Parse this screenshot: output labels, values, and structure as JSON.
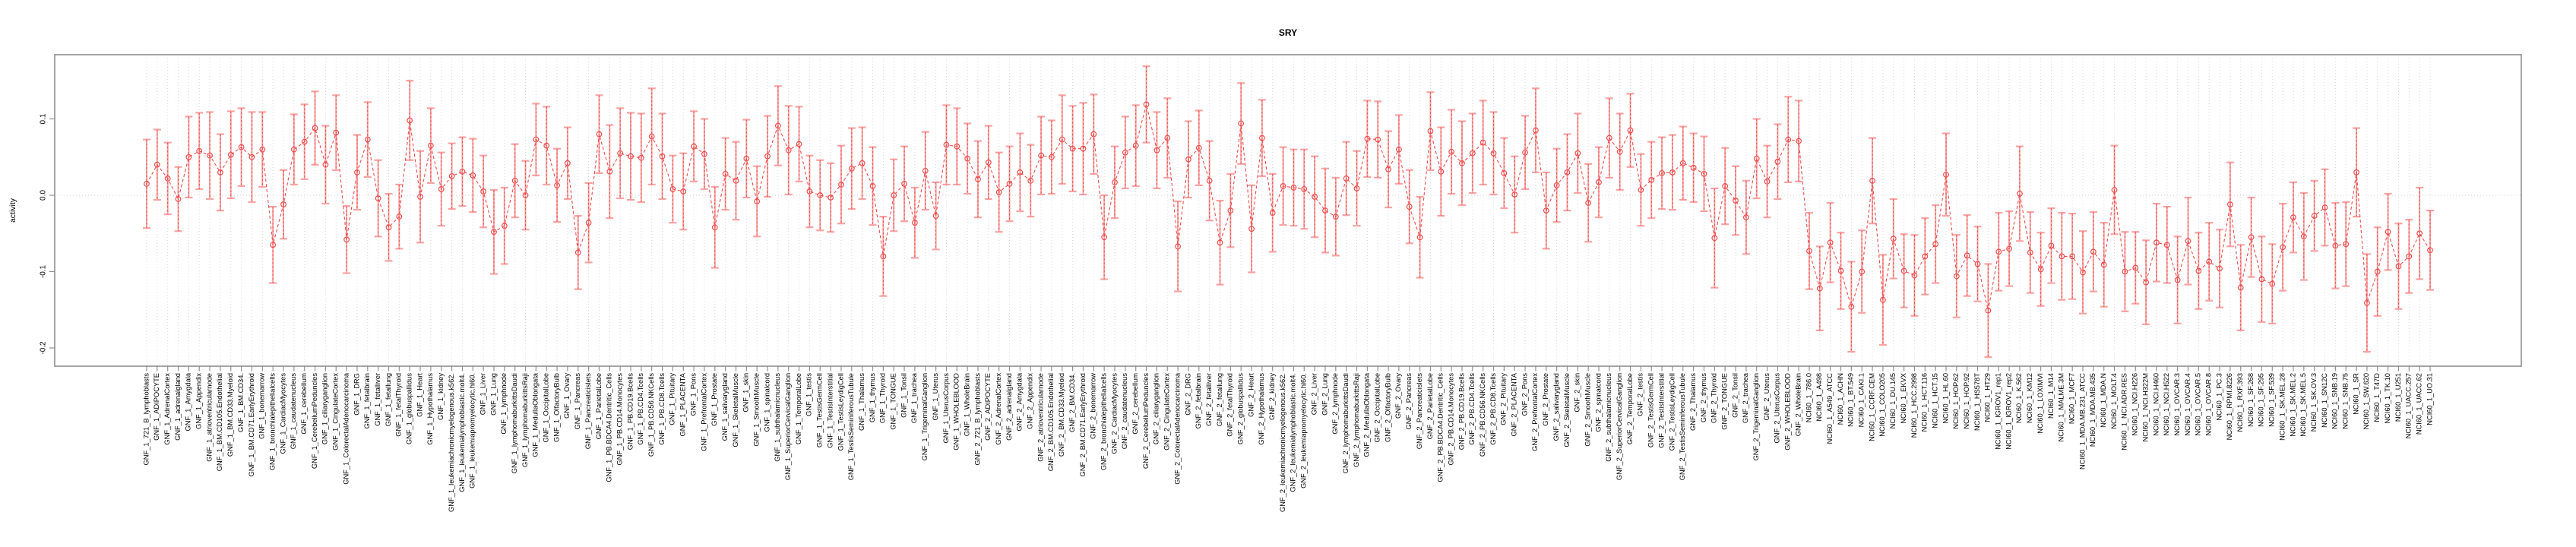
{
  "header": {
    "title": "SRY"
  },
  "colors": {
    "series_line": "#ee4e4e",
    "marker_stroke": "#ee4e4e",
    "error_bar": "#f9a3a3",
    "error_bar_dash_overlay": "#ee4e4e",
    "grid": "#d9d9d9",
    "zero_line": "#cfcfcf",
    "axis": "#8f8f8f",
    "text": "#000000",
    "background": "#ffffff"
  },
  "chart_data": {
    "type": "scatter",
    "title": "SRY",
    "xlabel": "",
    "ylabel": "activity",
    "ylim": [
      -0.225,
      0.184
    ],
    "yticks": [
      0.1,
      0.0,
      -0.1,
      -0.2
    ],
    "ytick_labels": [
      "0.1",
      "0.0",
      "-0.1",
      "-0.2"
    ],
    "grid": {
      "vertical_dotted_per_category": true,
      "horizontal_dotted_at_zero": true
    },
    "legend_position": "none",
    "series_name": "activity",
    "marker": "open-circle",
    "line_style": "dashed",
    "error_bars": true,
    "categories": [
      "GNF_1_721_B_lymphoblasts",
      "GNF_1_ADIPOCYTE",
      "GNF_1_AdrenalCortex",
      "GNF_1_adrenalgland",
      "GNF_1_Amygdala",
      "GNF_1_Appendix",
      "GNF_1_atrioventricularnode",
      "GNF_1_BM.CD105.Endothelial",
      "GNF_1_BM.CD33.Myeloid",
      "GNF_1_BM.CD34.",
      "GNF_1_BM.CD71.EarlyErythroid",
      "GNF_1_bonemarrow",
      "GNF_1_bronchialepithelialcells",
      "GNF_1_CardiacMyocytes",
      "GNF_1_caudatenucleus",
      "GNF_1_cerebellum",
      "GNF_1_CerebellumPeduncles",
      "GNF_1_ciliaryganglion",
      "GNF_1_CingulateCortex",
      "GNF_1_ColorectalAdenocarcinoma",
      "GNF_1_DRG",
      "GNF_1_fetalbrain",
      "GNF_1_fetalliver",
      "GNF_1_fetallung",
      "GNF_1_fetalThyroid",
      "GNF_1_globuspallidus",
      "GNF_1_Heart",
      "GNF_1_Hypothalamus",
      "GNF_1_kidney",
      "GNF_1_leukemiachronicmyelogenous.k562.",
      "GNF_1_leukemialymphoblastic.molt4.",
      "GNF_1_leukemiapromyelocytic.hl60.",
      "GNF_1_Liver",
      "GNF_1_Lung",
      "GNF_1_lymphnode",
      "GNF_1_lymphomaburkittsDaudi",
      "GNF_1_lymphomaburkittsRaji",
      "GNF_1_MedullaOblongata",
      "GNF_1_OccipitalLobe",
      "GNF_1_OlfactoryBulb",
      "GNF_1_Ovary",
      "GNF_1_Pancreas",
      "GNF_1_Pancreaticislets",
      "GNF_1_ParietalLobe",
      "GNF_1_PB.BDCA4.Dentritic_Cells",
      "GNF_1_PB.CD14.Monocytes",
      "GNF_1_PB.CD19.Bcells",
      "GNF_1_PB.CD4.Tcells",
      "GNF_1_PB.CD56.NKCells",
      "GNF_1_PB.CD8.Tcells",
      "GNF_1_Pituitary",
      "GNF_1_PLACENTA",
      "GNF_1_Pons",
      "GNF_1_PrefrontalCortex",
      "GNF_1_Prostate",
      "GNF_1_salivarygland",
      "GNF_1_SkeletalMuscle",
      "GNF_1_skin",
      "GNF_1_SmoothMuscle",
      "GNF_1_spinalcord",
      "GNF_1_subthalamicnucleus",
      "GNF_1_SuperiorCervicalGanglion",
      "GNF_1_TemporalLobe",
      "GNF_1_testis",
      "GNF_1_TestisGermCell",
      "GNF_1_TestisInterstitial",
      "GNF_1_TestisLeydigCell",
      "GNF_1_TestisSeminiferousTubule",
      "GNF_1_Thalamus",
      "GNF_1_thymus",
      "GNF_1_Thyroid",
      "GNF_1_TONGUE",
      "GNF_1_Tonsil",
      "GNF_1_trachea",
      "GNF_1_TrigeminalGanglion",
      "GNF_1_Uterus",
      "GNF_1_UterusCorpus",
      "GNF_1_WHOLEBLOOD",
      "GNF_1_WholeBrain",
      "GNF_2_721_B_lymphoblasts",
      "GNF_2_ADIPOCYTE",
      "GNF_2_AdrenalCortex",
      "GNF_2_adrenalgland",
      "GNF_2_Amygdala",
      "GNF_2_Appendix",
      "GNF_2_atrioventricularnode",
      "GNF_2_BM.CD105.Endothelial",
      "GNF_2_BM.CD33.Myeloid",
      "GNF_2_BM.CD34.",
      "GNF_2_BM.CD71.EarlyErythroid",
      "GNF_2_bonemarrow",
      "GNF_2_bronchialepithelialcells",
      "GNF_2_CardiacMyocytes",
      "GNF_2_caudatenucleus",
      "GNF_2_cerebellum",
      "GNF_2_CerebellumPeduncles",
      "GNF_2_ciliaryganglion",
      "GNF_2_CingulateCortex",
      "GNF_2_ColorectalAdenocarcinoma",
      "GNF_2_DRG",
      "GNF_2_fetalbrain",
      "GNF_2_fetalliver",
      "GNF_2_fetallung",
      "GNF_2_fetalThyroid",
      "GNF_2_globuspallidus",
      "GNF_2_Heart",
      "GNF_2_Hypothalamus",
      "GNF_2_kidney",
      "GNF_2_leukemiachronicmyelogenous.k562.",
      "GNF_2_leukemialymphoblastic.molt4.",
      "GNF_2_leukemiapromyelocytic.hl60.",
      "GNF_2_Liver",
      "GNF_2_Lung",
      "GNF_2_lymphnode",
      "GNF_2_lymphomaburkittsDaudi",
      "GNF_2_lymphomaburkittsRaji",
      "GNF_2_MedullaOblongata",
      "GNF_2_OccipitalLobe",
      "GNF_2_OlfactoryBulb",
      "GNF_2_Ovary",
      "GNF_2_Pancreas",
      "GNF_2_Pancreaticislets",
      "GNF_2_ParietalLobe",
      "GNF_2_PB.BDCA4.Dentritic_Cells",
      "GNF_2_PB.CD14.Monocytes",
      "GNF_2_PB.CD19.Bcells",
      "GNF_2_PB.CD4.Tcells",
      "GNF_2_PB.CD56.NKCells",
      "GNF_2_PB.CD8.Tcells",
      "GNF_2_Pituitary",
      "GNF_2_PLACENTA",
      "GNF_2_Pons",
      "GNF_2_PrefrontalCortex",
      "GNF_2_Prostate",
      "GNF_2_salivarygland",
      "GNF_2_SkeletalMuscle",
      "GNF_2_skin",
      "GNF_2_SmoothMuscle",
      "GNF_2_spinalcord",
      "GNF_2_subthalamicnucleus",
      "GNF_2_SuperiorCervicalGanglion",
      "GNF_2_TemporalLobe",
      "GNF_2_testis",
      "GNF_2_TestisGermCell",
      "GNF_2_TestisInterstitial",
      "GNF_2_TestisLeydigCell",
      "GNF_2_TestisSeminiferousTubule",
      "GNF_2_Thalamus",
      "GNF_2_thymus",
      "GNF_2_Thyroid",
      "GNF_2_TONGUE",
      "GNF_2_Tonsil",
      "GNF_2_trachea",
      "GNF_2_TrigeminalGanglion",
      "GNF_2_Uterus",
      "GNF_2_UterusCorpus",
      "GNF_2_WHOLEBLOOD",
      "GNF_2_WholeBrain",
      "NCI60_1_786.0",
      "NCI60_1_A498",
      "NCI60_1_A549_ATCC",
      "NCI60_1_ACHN",
      "NCI60_1_BT.549",
      "NCI60_1_CAKI.1",
      "NCI60_1_CCRF.CEM",
      "NCI60_1_COLO205",
      "NCI60_1_DU.145",
      "NCI60_1_EKVX",
      "NCI60_1_HCC.2998",
      "NCI60_1_HCT.116",
      "NCI60_1_HCT.15",
      "NCI60_1_HL.60",
      "NCI60_1_HOP.62",
      "NCI60_1_HOP.92",
      "NCI60_1_HS578T",
      "NCI60_1_HT29",
      "NCI60_1_IGROV1_rep1",
      "NCI60_1_IGROV1_rep2",
      "NCI60_1_K.562",
      "NCI60_1_KM12",
      "NCI60_1_LOXIMVI",
      "NCI60_1_M14",
      "NCI60_1_MALME.3M",
      "NCI60_1_MCF7",
      "NCI60_1_MDA.MB.231_ATCC",
      "NCI60_1_MDA.MB.435",
      "NCI60_1_MDA.N",
      "NCI60_1_MOLT.4",
      "NCI60_1_NCI.ADR.RES",
      "NCI60_1_NCI.H226",
      "NCI60_1_NCI.H322M",
      "NCI60_1_NCI.H460",
      "NCI60_1_NCI.H522",
      "NCI60_1_OVCAR.3",
      "NCI60_1_OVCAR.4",
      "NCI60_1_OVCAR.5",
      "NCI60_1_OVCAR.8",
      "NCI60_1_PC.3",
      "NCI60_1_RPMI.8226",
      "NCI60_1_RXF.393",
      "NCI60_1_SF.268",
      "NCI60_1_SF.295",
      "NCI60_1_SF.539",
      "NCI60_1_SK.MEL.28",
      "NCI60_1_SK.MEL.2",
      "NCI60_1_SK.MEL.5",
      "NCI60_1_SK.OV.3",
      "NCI60_1_SN12C",
      "NCI60_1_SNB.19",
      "NCI60_1_SNB.75",
      "NCI60_1_SR",
      "NCI60_1_SW.620",
      "NCI60_1_T47D",
      "NCI60_1_TK.10",
      "NCI60_1_U251",
      "NCI60_1_UACC.257",
      "NCI60_1_UACC.62",
      "NCI60_1_UO.31"
    ],
    "values": [
      0.015,
      0.04,
      0.022,
      -0.005,
      0.05,
      0.058,
      0.052,
      0.03,
      0.053,
      0.063,
      0.05,
      0.06,
      -0.065,
      -0.012,
      0.06,
      0.07,
      0.088,
      0.04,
      0.082,
      -0.058,
      0.03,
      0.073,
      -0.004,
      -0.042,
      -0.028,
      0.098,
      -0.002,
      0.065,
      0.008,
      0.025,
      0.031,
      0.026,
      0.005,
      -0.048,
      -0.04,
      0.019,
      0.0,
      0.073,
      0.065,
      0.013,
      0.042,
      -0.075,
      -0.036,
      0.08,
      0.031,
      0.055,
      0.051,
      0.049,
      0.077,
      0.051,
      0.008,
      0.005,
      0.064,
      0.054,
      -0.042,
      0.028,
      0.019,
      0.048,
      -0.008,
      0.051,
      0.091,
      0.059,
      0.067,
      0.005,
      0.0,
      -0.003,
      0.014,
      0.035,
      0.042,
      0.012,
      -0.08,
      0.0,
      0.015,
      -0.036,
      0.032,
      -0.027,
      0.066,
      0.064,
      0.048,
      0.021,
      0.043,
      0.004,
      0.015,
      0.03,
      0.019,
      0.052,
      0.05,
      0.073,
      0.061,
      0.061,
      0.08,
      -0.055,
      0.017,
      0.056,
      0.065,
      0.119,
      0.059,
      0.075,
      -0.067,
      0.047,
      0.062,
      0.019,
      -0.062,
      -0.02,
      0.094,
      -0.044,
      0.075,
      -0.023,
      0.012,
      0.01,
      0.008,
      -0.002,
      -0.02,
      -0.028,
      0.022,
      0.009,
      0.074,
      0.073,
      0.034,
      0.06,
      -0.015,
      -0.055,
      0.084,
      0.031,
      0.057,
      0.042,
      0.055,
      0.069,
      0.055,
      0.029,
      0.001,
      0.056,
      0.085,
      -0.02,
      0.013,
      0.03,
      0.055,
      -0.01,
      0.017,
      0.075,
      0.057,
      0.085,
      0.007,
      0.02,
      0.029,
      0.03,
      0.042,
      0.036,
      0.028,
      -0.056,
      0.012,
      -0.007,
      -0.029,
      0.048,
      0.018,
      0.044,
      0.073,
      0.071,
      -0.073,
      -0.122,
      -0.062,
      -0.099,
      -0.146,
      -0.1,
      0.019,
      -0.137,
      -0.057,
      -0.099,
      -0.105,
      -0.08,
      -0.064,
      0.027,
      -0.106,
      -0.079,
      -0.09,
      -0.151,
      -0.074,
      -0.07,
      0.002,
      -0.075,
      -0.097,
      -0.066,
      -0.08,
      -0.08,
      -0.101,
      -0.074,
      -0.091,
      0.007,
      -0.1,
      -0.095,
      -0.114,
      -0.062,
      -0.065,
      -0.111,
      -0.06,
      -0.099,
      -0.087,
      -0.096,
      -0.012,
      -0.121,
      -0.055,
      -0.11,
      -0.116,
      -0.068,
      -0.029,
      -0.054,
      -0.027,
      -0.016,
      -0.066,
      -0.064,
      0.03,
      -0.141,
      -0.1,
      -0.048,
      -0.093,
      -0.08,
      -0.05,
      -0.072
    ],
    "errors": [
      0.058,
      0.046,
      0.047,
      0.042,
      0.053,
      0.05,
      0.057,
      0.05,
      0.057,
      0.051,
      0.059,
      0.049,
      0.05,
      0.045,
      0.046,
      0.049,
      0.048,
      0.051,
      0.049,
      0.044,
      0.049,
      0.049,
      0.05,
      0.044,
      0.042,
      0.052,
      0.06,
      0.049,
      0.048,
      0.043,
      0.045,
      0.048,
      0.047,
      0.055,
      0.05,
      0.048,
      0.045,
      0.047,
      0.051,
      0.048,
      0.047,
      0.048,
      0.052,
      0.051,
      0.061,
      0.059,
      0.057,
      0.058,
      0.063,
      0.056,
      0.044,
      0.05,
      0.046,
      0.046,
      0.053,
      0.047,
      0.051,
      0.051,
      0.046,
      0.053,
      0.052,
      0.058,
      0.049,
      0.047,
      0.046,
      0.045,
      0.051,
      0.053,
      0.047,
      0.051,
      0.052,
      0.047,
      0.049,
      0.046,
      0.051,
      0.044,
      0.052,
      0.05,
      0.046,
      0.05,
      0.048,
      0.052,
      0.049,
      0.051,
      0.047,
      0.051,
      0.048,
      0.058,
      0.056,
      0.06,
      0.052,
      0.055,
      0.047,
      0.047,
      0.053,
      0.05,
      0.05,
      0.052,
      0.059,
      0.05,
      0.049,
      0.052,
      0.055,
      0.048,
      0.053,
      0.057,
      0.05,
      0.051,
      0.051,
      0.05,
      0.052,
      0.053,
      0.055,
      0.051,
      0.048,
      0.049,
      0.05,
      0.05,
      0.05,
      0.045,
      0.048,
      0.053,
      0.051,
      0.058,
      0.055,
      0.055,
      0.052,
      0.055,
      0.054,
      0.046,
      0.05,
      0.048,
      0.055,
      0.05,
      0.048,
      0.05,
      0.052,
      0.051,
      0.046,
      0.052,
      0.05,
      0.048,
      0.047,
      0.05,
      0.047,
      0.049,
      0.048,
      0.045,
      0.049,
      0.065,
      0.05,
      0.045,
      0.048,
      0.052,
      0.047,
      0.049,
      0.056,
      0.053,
      0.05,
      0.055,
      0.052,
      0.05,
      0.059,
      0.054,
      0.056,
      0.059,
      0.052,
      0.048,
      0.053,
      0.05,
      0.051,
      0.054,
      0.054,
      0.053,
      0.049,
      0.061,
      0.051,
      0.049,
      0.062,
      0.053,
      0.048,
      0.049,
      0.057,
      0.056,
      0.054,
      0.052,
      0.055,
      0.058,
      0.052,
      0.047,
      0.055,
      0.051,
      0.05,
      0.057,
      0.057,
      0.05,
      0.051,
      0.051,
      0.055,
      0.056,
      0.052,
      0.056,
      0.052,
      0.057,
      0.046,
      0.057,
      0.046,
      0.05,
      0.056,
      0.055,
      0.058,
      0.064,
      0.058,
      0.05,
      0.056,
      0.048,
      0.06,
      0.052
    ]
  }
}
